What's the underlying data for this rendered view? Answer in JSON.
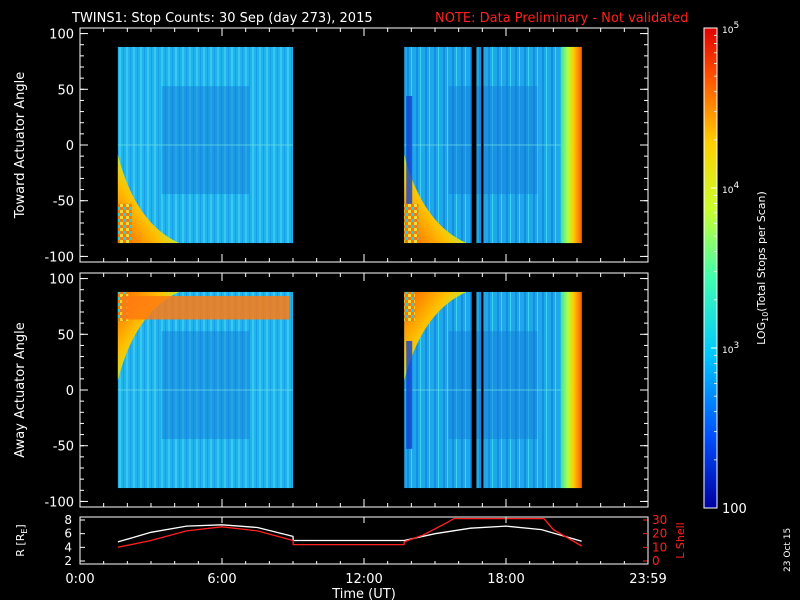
{
  "title": "TWINS1: Stop Counts: 30 Sep (day 273), 2015",
  "note": "NOTE: Data Preliminary - Not validated",
  "date_stamp": "23 Oct 15",
  "colors": {
    "background": "#000000",
    "axis": "#ffffff",
    "note": "#ff2020",
    "r_line": "#ffffff",
    "lshell_line": "#ff2020"
  },
  "chart_data": [
    {
      "type": "heatmap",
      "panel": "toward",
      "ylabel": "Toward Actuator Angle",
      "ylim": [
        -105,
        105
      ],
      "yticks": [
        100,
        50,
        0,
        -50,
        -100
      ],
      "xlim": [
        0,
        24
      ],
      "x_unit": "hours UT",
      "data_blocks": [
        {
          "x_start": 1.6,
          "x_end": 9.0,
          "angle_min": -88,
          "angle_max": 88
        },
        {
          "x_start": 13.7,
          "x_end": 21.2,
          "angle_min": -88,
          "angle_max": 88
        }
      ],
      "data_gaps": [
        [
          16.55,
          16.75
        ],
        [
          16.95,
          17.05
        ]
      ]
    },
    {
      "type": "heatmap",
      "panel": "away",
      "ylabel": "Away Actuator Angle",
      "ylim": [
        -105,
        105
      ],
      "yticks": [
        100,
        50,
        0,
        -50,
        -100
      ],
      "xlim": [
        0,
        24
      ],
      "x_unit": "hours UT",
      "data_blocks": [
        {
          "x_start": 1.6,
          "x_end": 9.0,
          "angle_min": -88,
          "angle_max": 88
        },
        {
          "x_start": 13.7,
          "x_end": 21.2,
          "angle_min": -88,
          "angle_max": 88
        }
      ],
      "data_gaps": [
        [
          16.55,
          16.75
        ],
        [
          16.95,
          17.05
        ]
      ]
    },
    {
      "type": "line",
      "panel": "ephemeris",
      "xlabel": "Time (UT)",
      "xticks": [
        "0:00",
        "6:00",
        "12:00",
        "18:00",
        "23:59"
      ],
      "xtick_hours": [
        0,
        6,
        12,
        18,
        24
      ],
      "left_axis": {
        "label": "R [R",
        "label_sub": "E",
        "label_end": "]",
        "ylim": [
          2,
          8
        ],
        "yticks": [
          8,
          6,
          4,
          2
        ]
      },
      "right_axis": {
        "label": "L Shell",
        "ylim": [
          0,
          30
        ],
        "yticks": [
          30,
          20,
          10,
          0
        ]
      },
      "series": [
        {
          "key": "r",
          "axis": "left",
          "x": [
            1.6,
            3,
            4.5,
            6,
            7.5,
            9,
            9.01,
            13.69,
            13.7,
            15,
            16.5,
            18,
            19.5,
            21.2
          ],
          "y": [
            4.8,
            6.2,
            7.1,
            7.3,
            6.9,
            5.6,
            5.0,
            5.0,
            5.0,
            6.0,
            6.8,
            7.1,
            6.6,
            4.9
          ]
        },
        {
          "key": "lshell",
          "axis": "right",
          "x": [
            1.6,
            3,
            4.5,
            6,
            7.5,
            9,
            9.01,
            13.69,
            13.7,
            14.5,
            15.5,
            15.8,
            19.6,
            20,
            21.2
          ],
          "y": [
            10,
            15,
            22,
            25,
            22,
            15,
            12,
            12,
            14,
            19,
            28,
            31,
            31,
            23,
            11
          ]
        }
      ]
    }
  ],
  "colorbar": {
    "label": "LOG",
    "label_sub": "10",
    "label_rest": "(Total Stops per Scan)",
    "scale": "log",
    "range": [
      100,
      100000
    ],
    "tick_labels": [
      {
        "base": "10",
        "exp": "5",
        "value": 100000
      },
      {
        "base": "10",
        "exp": "4",
        "value": 10000
      },
      {
        "base": "10",
        "exp": "3",
        "value": 1000
      },
      {
        "base": "100",
        "exp": "",
        "value": 100
      }
    ],
    "stops": [
      "#0000a0",
      "#0050ff",
      "#00c8ff",
      "#40ffb0",
      "#c8ff30",
      "#ffd000",
      "#ff5000",
      "#e00000"
    ]
  }
}
